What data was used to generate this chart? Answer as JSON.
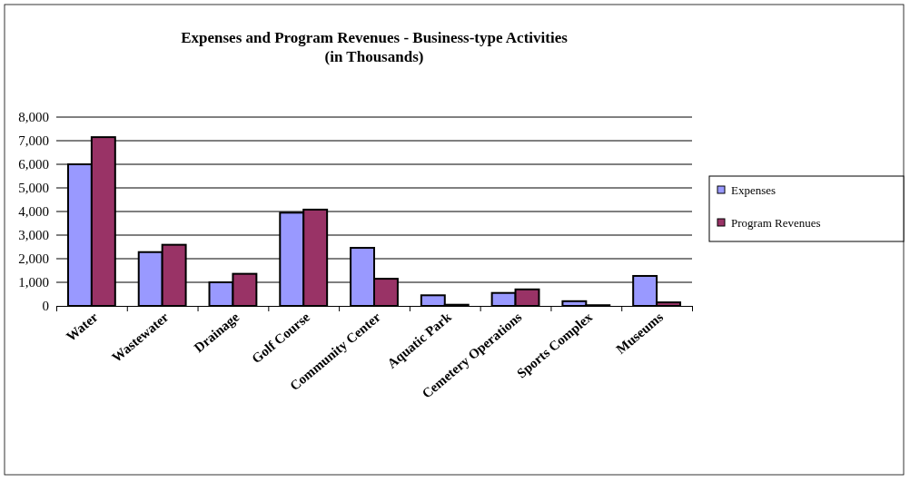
{
  "chart_data": {
    "type": "bar",
    "title": "Expenses and Program Revenues - Business-type Activities\n(in Thousands)",
    "categories": [
      "Water",
      "Wastewater",
      "Drainage",
      "Golf Course",
      "Community Center",
      "Aquatic Park",
      "Cemetery Operations",
      "Sports Complex",
      "Museums"
    ],
    "series": [
      {
        "name": "Expenses",
        "color": "#9999ff",
        "values": [
          6000,
          2280,
          1000,
          3950,
          2460,
          450,
          550,
          200,
          1270
        ]
      },
      {
        "name": "Program Revenues",
        "color": "#993366",
        "values": [
          7150,
          2590,
          1360,
          4080,
          1150,
          50,
          700,
          30,
          150
        ]
      }
    ],
    "ylim": [
      0,
      8000
    ],
    "yticks": [
      {
        "value": 0,
        "label": "0"
      },
      {
        "value": 1000,
        "label": "1,000"
      },
      {
        "value": 2000,
        "label": "2,000"
      },
      {
        "value": 3000,
        "label": "3,000"
      },
      {
        "value": 4000,
        "label": "4,000"
      },
      {
        "value": 5000,
        "label": "5,000"
      },
      {
        "value": 6000,
        "label": "6,000"
      },
      {
        "value": 7000,
        "label": "7,000"
      },
      {
        "value": 8000,
        "label": "8,000"
      }
    ],
    "grid": "y",
    "legend": "right"
  }
}
